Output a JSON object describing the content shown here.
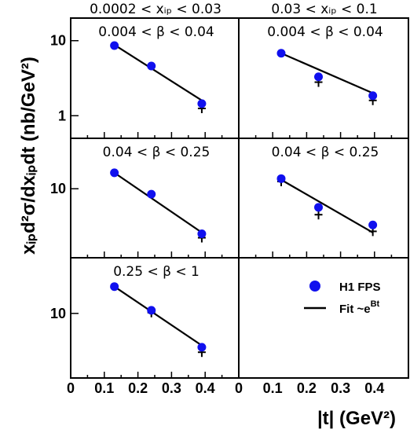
{
  "column_headers": [
    "0.0002 < xᵢₚ < 0.03",
    "0.03 < xᵢₚ < 0.1"
  ],
  "x_axis": {
    "title": "|t| (GeV²)",
    "ticks": [
      "0",
      "0.1",
      "0.2",
      "0.3",
      "0.4"
    ]
  },
  "y_axis": {
    "title": "xᵢₚd²σ/dxᵢₚdt (nb/GeV²)"
  },
  "legend": {
    "points_label": "H1 FPS",
    "fit_label": "Fit ~e",
    "fit_label_sup": "Bt",
    "point_color": "#1010ee"
  },
  "chart_data": {
    "type": "scatter",
    "xlim": [
      0,
      0.5
    ],
    "log_y": true,
    "panels": [
      {
        "id": "r1c1",
        "label": "0.004 < β < 0.04",
        "ylim": [
          0.5,
          20
        ],
        "y_ticks": [
          "10",
          "1"
        ],
        "y_tick_values": [
          10,
          1
        ],
        "points": [
          {
            "x": 0.13,
            "y": 8.6
          },
          {
            "x": 0.24,
            "y": 4.6
          },
          {
            "x": 0.39,
            "y": 1.45
          }
        ],
        "syst_markers": [
          {
            "x": 0.39,
            "y": 1.25
          }
        ],
        "fit": {
          "x0": 0.13,
          "y0": 8.8,
          "x1": 0.39,
          "y1": 1.6
        }
      },
      {
        "id": "r1c2",
        "label": "0.004 < β < 0.04",
        "ylim": [
          0.5,
          20
        ],
        "y_ticks": [],
        "y_tick_values": [],
        "points": [
          {
            "x": 0.125,
            "y": 6.8
          },
          {
            "x": 0.235,
            "y": 3.3
          },
          {
            "x": 0.395,
            "y": 1.85
          }
        ],
        "syst_markers": [
          {
            "x": 0.235,
            "y": 2.8
          },
          {
            "x": 0.395,
            "y": 1.6
          }
        ],
        "fit": {
          "x0": 0.125,
          "y0": 6.8,
          "x1": 0.395,
          "y1": 2.0
        }
      },
      {
        "id": "r2c1",
        "label": "0.04 < β < 0.25",
        "ylim": [
          1.5,
          40
        ],
        "y_ticks": [
          "10"
        ],
        "y_tick_values": [
          10
        ],
        "points": [
          {
            "x": 0.13,
            "y": 15.5
          },
          {
            "x": 0.24,
            "y": 8.6
          },
          {
            "x": 0.39,
            "y": 2.9
          }
        ],
        "syst_markers": [
          {
            "x": 0.39,
            "y": 2.6
          }
        ],
        "fit": {
          "x0": 0.13,
          "y0": 15.5,
          "x1": 0.39,
          "y1": 3.0
        }
      },
      {
        "id": "r2c2",
        "label": "0.04 < β < 0.25",
        "ylim": [
          1.5,
          40
        ],
        "y_ticks": [],
        "y_tick_values": [],
        "points": [
          {
            "x": 0.125,
            "y": 13.2
          },
          {
            "x": 0.235,
            "y": 6.0
          },
          {
            "x": 0.395,
            "y": 3.7
          }
        ],
        "syst_markers": [
          {
            "x": 0.125,
            "y": 12.2
          },
          {
            "x": 0.235,
            "y": 4.9
          },
          {
            "x": 0.395,
            "y": 3.1
          }
        ],
        "fit": {
          "x0": 0.125,
          "y0": 12.8,
          "x1": 0.395,
          "y1": 3.0
        }
      },
      {
        "id": "r3c1",
        "label": "0.25 < β < 1",
        "ylim": [
          2,
          40
        ],
        "y_ticks": [
          "10"
        ],
        "y_tick_values": [
          10
        ],
        "points": [
          {
            "x": 0.13,
            "y": 19.5
          },
          {
            "x": 0.24,
            "y": 10.8
          },
          {
            "x": 0.39,
            "y": 4.3
          }
        ],
        "syst_markers": [
          {
            "x": 0.24,
            "y": 10.2
          },
          {
            "x": 0.39,
            "y": 3.8
          }
        ],
        "fit": {
          "x0": 0.13,
          "y0": 19.5,
          "x1": 0.39,
          "y1": 4.5
        }
      }
    ]
  }
}
